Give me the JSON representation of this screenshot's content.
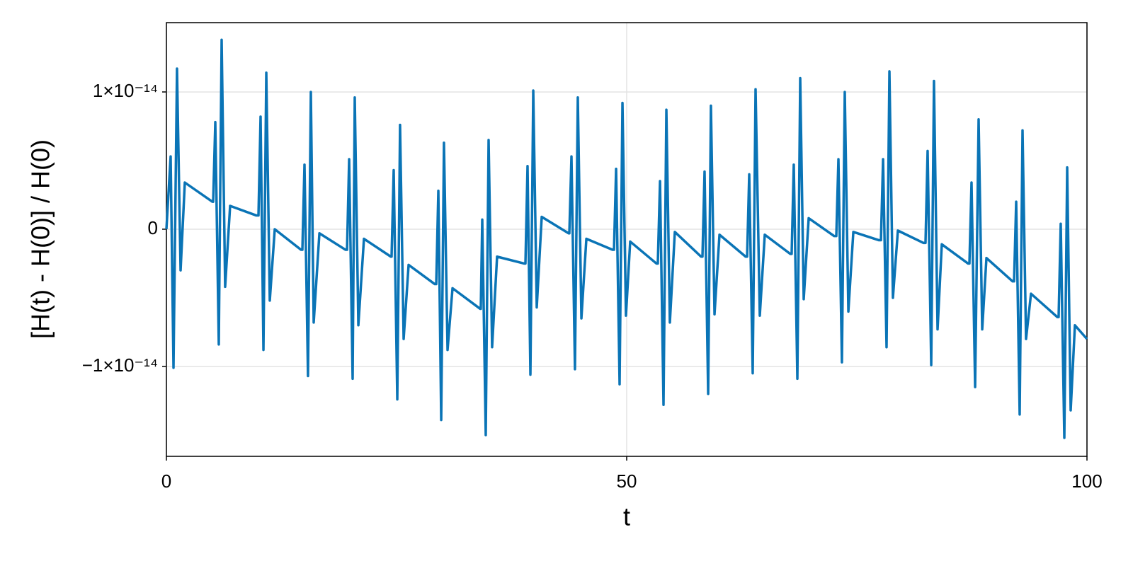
{
  "chart_data": {
    "type": "line",
    "xlabel": "t",
    "ylabel": "[H(t) - H(0)] / H(0)",
    "color": "#0a74b6",
    "grid": true,
    "xlim": [
      0,
      100
    ],
    "xticks": [
      0,
      50,
      100
    ],
    "ylim": [
      -1.655e-14,
      1.505e-14
    ],
    "yticks": [
      {
        "value": -1e-14,
        "label": "−1×10⁻¹⁴"
      },
      0,
      {
        "value": 1e-14,
        "label": "1×10⁻¹⁴"
      }
    ],
    "x": [
      0,
      0.46,
      0.77,
      1.15,
      1.54,
      2,
      5,
      5.08,
      5.31,
      5.69,
      6,
      6.38,
      6.92,
      9.77,
      10,
      10.23,
      10.54,
      10.85,
      11.23,
      11.77,
      14.62,
      14.77,
      15,
      15.38,
      15.69,
      16,
      16.62,
      19.46,
      19.62,
      19.85,
      20.23,
      20.46,
      20.85,
      21.46,
      24.38,
      24.46,
      24.69,
      25.08,
      25.38,
      25.77,
      26.31,
      29.15,
      29.31,
      29.54,
      29.85,
      30.15,
      30.54,
      31.08,
      34.08,
      34.15,
      34.31,
      34.69,
      35,
      35.38,
      35.92,
      38.85,
      39,
      39.23,
      39.54,
      39.85,
      40.23,
      40.77,
      43.69,
      43.77,
      44,
      44.38,
      44.69,
      45.08,
      45.62,
      48.46,
      48.62,
      48.85,
      49.23,
      49.54,
      49.92,
      50.38,
      53.23,
      53.38,
      53.62,
      54,
      54.31,
      54.69,
      55.23,
      58.08,
      58.23,
      58.46,
      58.85,
      59.15,
      59.54,
      60.08,
      62.92,
      63.08,
      63.31,
      63.69,
      64,
      64.46,
      65,
      67.77,
      67.92,
      68.15,
      68.54,
      68.85,
      69.23,
      69.77,
      72.54,
      72.77,
      73,
      73.38,
      73.69,
      74.08,
      74.62,
      77.38,
      77.62,
      77.85,
      78.23,
      78.54,
      78.92,
      79.46,
      82.23,
      82.46,
      82.69,
      83.08,
      83.38,
      83.77,
      84.23,
      87.08,
      87.23,
      87.46,
      87.85,
      88.23,
      88.62,
      89.08,
      91.92,
      92.08,
      92.31,
      92.69,
      93,
      93.38,
      93.92,
      96.77,
      96.92,
      97.15,
      97.54,
      97.85,
      98.23,
      98.69,
      100
    ],
    "values": [
      0,
      5.3e-15,
      -1.01e-14,
      1.17e-14,
      -3e-15,
      3.4e-15,
      2e-15,
      2e-15,
      7.8e-15,
      -8.4e-15,
      1.38e-14,
      -4.2e-15,
      1.7e-15,
      1e-15,
      1e-15,
      8.2e-15,
      -8.8e-15,
      1.14e-14,
      -5.2e-15,
      0,
      -1.5e-15,
      -1.5e-15,
      4.7e-15,
      -1.07e-14,
      1e-14,
      -6.8e-15,
      -3e-16,
      -1.5e-15,
      -1.5e-15,
      5.1e-15,
      -1.09e-14,
      9.6e-15,
      -7e-15,
      -7e-16,
      -2e-15,
      -2e-15,
      4.3e-15,
      -1.24e-14,
      7.6e-15,
      -8e-15,
      -2.6e-15,
      -4e-15,
      -4e-15,
      2.8e-15,
      -1.39e-14,
      6.3e-15,
      -8.8e-15,
      -4.3e-15,
      -5.8e-15,
      -5.8e-15,
      7e-16,
      -1.5e-14,
      6.5e-15,
      -8.6e-15,
      -2e-15,
      -2.5e-15,
      -2.5e-15,
      4.6e-15,
      -1.06e-14,
      1.01e-14,
      -5.7e-15,
      9e-16,
      -3e-16,
      -3e-16,
      5.3e-15,
      -1.02e-14,
      9.6e-15,
      -6.5e-15,
      -7e-16,
      -1.5e-15,
      -1.5e-15,
      4.4e-15,
      -1.13e-14,
      9.2e-15,
      -6.3e-15,
      -9e-16,
      -2.5e-15,
      -2.5e-15,
      3.5e-15,
      -1.28e-14,
      8.7e-15,
      -6.8e-15,
      -2e-16,
      -2e-15,
      -2e-15,
      4.2e-15,
      -1.2e-14,
      9e-15,
      -6.2e-15,
      -4e-16,
      -2e-15,
      -2e-15,
      4e-15,
      -1.05e-14,
      1.02e-14,
      -6.3e-15,
      -4e-16,
      -1.8e-15,
      -1.8e-15,
      4.7e-15,
      -1.09e-14,
      1.1e-14,
      -5.1e-15,
      8e-16,
      -5e-16,
      -5e-16,
      5.1e-15,
      -9.7e-15,
      1e-14,
      -6e-15,
      -2e-16,
      -8e-16,
      -8e-16,
      5.1e-15,
      -8.6e-15,
      1.15e-14,
      -5e-15,
      -1e-16,
      -1e-15,
      -1e-15,
      5.7e-15,
      -9.9e-15,
      1.08e-14,
      -7.3e-15,
      -1.1e-15,
      -2.5e-15,
      -2.5e-15,
      3.4e-15,
      -1.15e-14,
      8e-15,
      -7.3e-15,
      -2.1e-15,
      -3.8e-15,
      -3.8e-15,
      2e-15,
      -1.35e-14,
      7.2e-15,
      -8e-15,
      -4.7e-15,
      -6.4e-15,
      -6.4e-15,
      4e-16,
      -1.52e-14,
      4.5e-15,
      -1.32e-14,
      -7e-15,
      -8e-15
    ]
  }
}
